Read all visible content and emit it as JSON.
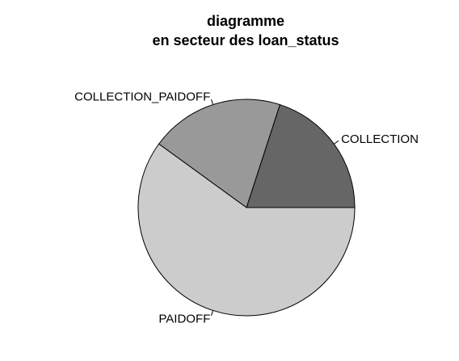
{
  "chart_data": {
    "type": "pie",
    "title_lines": [
      "diagramme",
      "en secteur des loan_status"
    ],
    "slices": [
      {
        "label": "COLLECTION",
        "value": 20,
        "color": "#666666"
      },
      {
        "label": "COLLECTION_PAIDOFF",
        "value": 20,
        "color": "#999999"
      },
      {
        "label": "PAIDOFF",
        "value": 60,
        "color": "#cccccc"
      }
    ],
    "start_angle_deg": 0,
    "direction": "counterclockwise",
    "legend": "none"
  }
}
